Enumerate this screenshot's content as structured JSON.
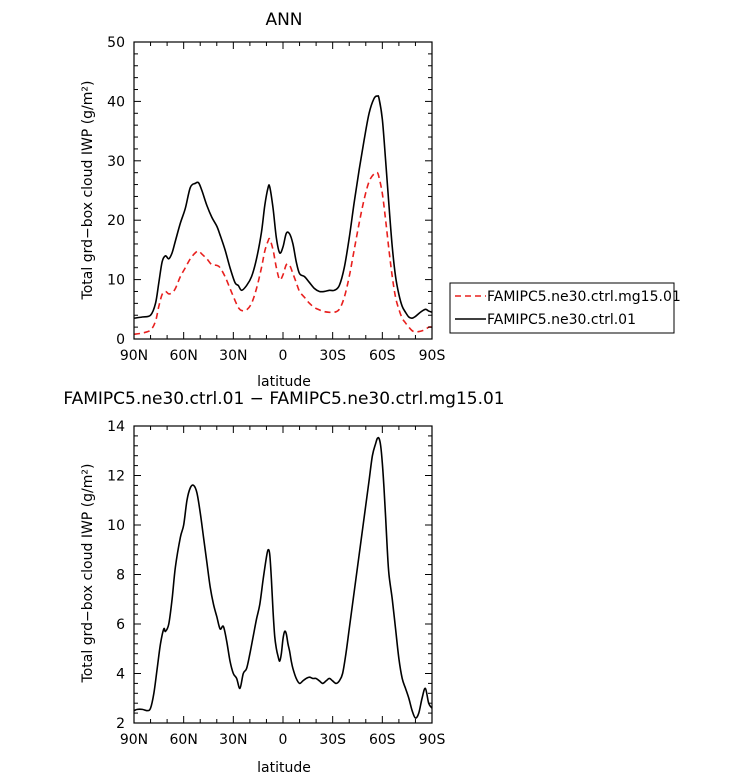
{
  "chart_data": [
    {
      "type": "line",
      "title": "ANN",
      "xlabel": "latitude",
      "ylabel": "Total grd−box cloud IWP (g/m²)",
      "x_ticks": [
        {
          "v": -90,
          "label": "90N"
        },
        {
          "v": -60,
          "label": "60N"
        },
        {
          "v": -30,
          "label": "30N"
        },
        {
          "v": 0,
          "label": "0"
        },
        {
          "v": 30,
          "label": "30S"
        },
        {
          "v": 60,
          "label": "60S"
        },
        {
          "v": 90,
          "label": "90S"
        }
      ],
      "xlim": [
        -90,
        90
      ],
      "ylim": [
        0,
        50
      ],
      "y_ticks": [
        0,
        10,
        20,
        30,
        40,
        50
      ],
      "legend_position": "right",
      "series": [
        {
          "name": "FAMIPC5.ne30.ctrl.mg15.01",
          "color": "#e8201e",
          "style": "dashed",
          "x": [
            -90,
            -85,
            -80,
            -77,
            -75,
            -73,
            -71,
            -69,
            -67,
            -65,
            -62,
            -59,
            -56,
            -53,
            -51,
            -49,
            -46,
            -43,
            -40,
            -38,
            -35,
            -32,
            -29,
            -27,
            -25,
            -22,
            -19,
            -16,
            -13,
            -11,
            -9,
            -8,
            -6,
            -4,
            -2,
            0,
            2,
            4,
            6,
            8,
            10,
            13,
            16,
            19,
            22,
            25,
            28,
            31,
            34,
            37,
            40,
            43,
            46,
            49,
            52,
            55,
            57,
            58,
            60,
            62,
            64,
            66,
            68,
            70,
            72,
            74,
            76,
            78,
            80,
            83,
            86,
            88,
            90
          ],
          "y": [
            0.8,
            1.0,
            1.5,
            3.0,
            5.5,
            7.5,
            8.0,
            7.6,
            7.8,
            8.5,
            10.5,
            12.0,
            13.5,
            14.5,
            14.8,
            14.3,
            13.5,
            12.5,
            12.4,
            12.0,
            10.5,
            8.5,
            6.5,
            5.3,
            4.8,
            4.9,
            6.0,
            8.5,
            12.0,
            14.8,
            16.5,
            16.8,
            15.0,
            12.0,
            10.0,
            10.8,
            12.5,
            12.4,
            11.0,
            9.5,
            8.0,
            7.0,
            6.0,
            5.3,
            4.9,
            4.6,
            4.5,
            4.5,
            5.0,
            7.0,
            10.5,
            15.0,
            19.5,
            23.5,
            26.5,
            27.8,
            28.0,
            27.2,
            24.5,
            20.0,
            15.0,
            10.5,
            7.0,
            5.0,
            3.5,
            2.7,
            2.0,
            1.4,
            1.2,
            1.3,
            1.6,
            2.0,
            2.0
          ]
        },
        {
          "name": "FAMIPC5.ne30.ctrl.01",
          "color": "#000000",
          "style": "solid",
          "x": [
            -90,
            -85,
            -80,
            -77,
            -75,
            -73,
            -71,
            -69,
            -67,
            -65,
            -62,
            -59,
            -56,
            -53,
            -51,
            -49,
            -46,
            -43,
            -40,
            -38,
            -35,
            -32,
            -29,
            -27,
            -25,
            -22,
            -19,
            -16,
            -13,
            -11,
            -9,
            -8,
            -6,
            -4,
            -2,
            0,
            2,
            4,
            6,
            8,
            10,
            13,
            16,
            19,
            22,
            25,
            28,
            31,
            34,
            37,
            40,
            43,
            46,
            49,
            52,
            55,
            57,
            58,
            60,
            62,
            64,
            66,
            68,
            70,
            72,
            74,
            76,
            78,
            80,
            83,
            86,
            88,
            90
          ],
          "y": [
            3.5,
            3.7,
            4.0,
            6.0,
            9.5,
            13.0,
            14.0,
            13.5,
            14.5,
            16.5,
            19.5,
            22.0,
            25.5,
            26.2,
            26.3,
            25.0,
            22.5,
            20.5,
            19.0,
            17.5,
            15.0,
            12.0,
            9.5,
            9.0,
            8.2,
            9.0,
            10.5,
            13.5,
            18.0,
            22.5,
            25.5,
            25.6,
            22.0,
            17.0,
            14.5,
            15.5,
            17.8,
            17.7,
            16.0,
            13.0,
            11.0,
            10.5,
            9.5,
            8.5,
            8.0,
            8.0,
            8.2,
            8.2,
            9.0,
            12.0,
            17.0,
            23.0,
            28.5,
            33.5,
            38.0,
            40.5,
            40.9,
            40.5,
            37.0,
            30.0,
            22.5,
            15.5,
            10.5,
            7.5,
            5.5,
            4.5,
            3.7,
            3.5,
            3.8,
            4.5,
            5.0,
            4.7,
            4.5
          ]
        }
      ]
    },
    {
      "type": "line",
      "title": "FAMIPC5.ne30.ctrl.01 − FAMIPC5.ne30.ctrl.mg15.01",
      "xlabel": "latitude",
      "ylabel": "Total grd−box cloud IWP (g/m²)",
      "x_ticks": [
        {
          "v": -90,
          "label": "90N"
        },
        {
          "v": -60,
          "label": "60N"
        },
        {
          "v": -30,
          "label": "30N"
        },
        {
          "v": 0,
          "label": "0"
        },
        {
          "v": 30,
          "label": "30S"
        },
        {
          "v": 60,
          "label": "60S"
        },
        {
          "v": 90,
          "label": "90S"
        }
      ],
      "xlim": [
        -90,
        90
      ],
      "ylim": [
        2,
        14
      ],
      "y_ticks": [
        2,
        4,
        6,
        8,
        10,
        12,
        14
      ],
      "series": [
        {
          "color": "#000000",
          "style": "solid",
          "x": [
            -90,
            -88,
            -85,
            -82,
            -80,
            -78,
            -76,
            -74,
            -72,
            -71,
            -69,
            -67,
            -65,
            -62,
            -60,
            -58,
            -56,
            -54,
            -52,
            -50,
            -48,
            -46,
            -44,
            -42,
            -40,
            -38,
            -36,
            -34,
            -32,
            -30,
            -28,
            -26,
            -24,
            -22,
            -20,
            -18,
            -16,
            -14,
            -12,
            -10,
            -9,
            -8,
            -7,
            -6,
            -5,
            -4,
            -3,
            -2,
            -1,
            0,
            1,
            2,
            3,
            4,
            5,
            6,
            8,
            10,
            12,
            14,
            16,
            18,
            20,
            22,
            24,
            26,
            28,
            30,
            32,
            34,
            36,
            38,
            40,
            42,
            44,
            46,
            48,
            50,
            52,
            54,
            56,
            57,
            58,
            59,
            60,
            61,
            62,
            63,
            64,
            66,
            68,
            70,
            72,
            74,
            76,
            78,
            80,
            82,
            84,
            86,
            88,
            90
          ],
          "y": [
            2.5,
            2.55,
            2.55,
            2.5,
            2.6,
            3.2,
            4.2,
            5.2,
            5.8,
            5.7,
            6.0,
            7.0,
            8.3,
            9.5,
            10.0,
            11.0,
            11.5,
            11.6,
            11.3,
            10.5,
            9.5,
            8.5,
            7.5,
            6.8,
            6.3,
            5.8,
            5.9,
            5.3,
            4.5,
            4.0,
            3.8,
            3.4,
            4.0,
            4.2,
            4.8,
            5.5,
            6.2,
            6.8,
            7.8,
            8.7,
            9.0,
            8.8,
            7.8,
            6.5,
            5.5,
            5.0,
            4.7,
            4.5,
            4.8,
            5.4,
            5.7,
            5.6,
            5.2,
            4.9,
            4.5,
            4.2,
            3.8,
            3.6,
            3.7,
            3.8,
            3.85,
            3.8,
            3.8,
            3.7,
            3.6,
            3.7,
            3.8,
            3.7,
            3.6,
            3.7,
            4.0,
            4.8,
            5.8,
            6.8,
            7.8,
            8.8,
            9.8,
            10.8,
            11.8,
            12.8,
            13.3,
            13.5,
            13.5,
            13.2,
            12.5,
            11.5,
            10.3,
            9.0,
            8.0,
            7.0,
            5.8,
            4.6,
            3.8,
            3.4,
            3.0,
            2.5,
            2.2,
            2.4,
            3.0,
            3.4,
            2.8,
            2.6
          ]
        }
      ]
    }
  ]
}
